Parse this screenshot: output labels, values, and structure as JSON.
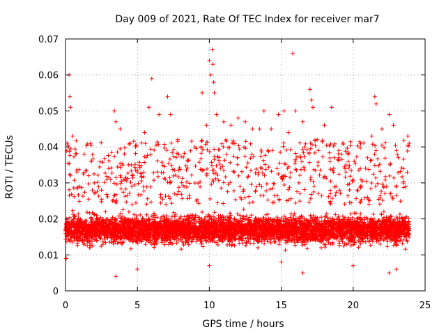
{
  "chart_data": {
    "type": "scatter",
    "title": "Day 009 of 2021, Rate Of TEC Index for receiver mar7",
    "xlabel": "GPS time / hours",
    "ylabel": "ROTI / TECUs",
    "xlim": [
      0,
      25
    ],
    "ylim": [
      0,
      0.07
    ],
    "x_ticks": [
      0,
      5,
      10,
      15,
      20,
      25
    ],
    "x_tick_labels": [
      "0",
      "5",
      "10",
      "15",
      "20",
      "25"
    ],
    "y_ticks": [
      0,
      0.01,
      0.02,
      0.03,
      0.04,
      0.05,
      0.06,
      0.07
    ],
    "y_tick_labels": [
      "0",
      "0.01",
      "0.02",
      "0.03",
      "0.04",
      "0.05",
      "0.06",
      "0.07"
    ],
    "grid": true,
    "marker": "+",
    "marker_color": "#ff0000",
    "series": [
      {
        "name": "ROTI",
        "description_note": "dense scatter; core band ~0.010-0.025 TECU/min across 0-24 h",
        "points": [
          [
            0.1,
            0.018
          ],
          [
            0.2,
            0.04
          ],
          [
            0.25,
            0.06
          ],
          [
            0.3,
            0.054
          ],
          [
            0.35,
            0.051
          ],
          [
            0.5,
            0.043
          ],
          [
            0.8,
            0.033
          ],
          [
            1.0,
            0.029
          ],
          [
            1.3,
            0.038
          ],
          [
            1.6,
            0.032
          ],
          [
            2.0,
            0.03
          ],
          [
            2.5,
            0.028
          ],
          [
            3.0,
            0.034
          ],
          [
            3.4,
            0.05
          ],
          [
            3.5,
            0.047
          ],
          [
            3.8,
            0.045
          ],
          [
            4.5,
            0.041
          ],
          [
            5.0,
            0.033
          ],
          [
            5.5,
            0.044
          ],
          [
            5.8,
            0.051
          ],
          [
            6.0,
            0.059
          ],
          [
            6.5,
            0.049
          ],
          [
            7.1,
            0.054
          ],
          [
            7.3,
            0.049
          ],
          [
            7.8,
            0.042
          ],
          [
            8.5,
            0.036
          ],
          [
            9.0,
            0.04
          ],
          [
            9.5,
            0.055
          ],
          [
            9.8,
            0.046
          ],
          [
            10.0,
            0.064
          ],
          [
            10.1,
            0.06
          ],
          [
            10.2,
            0.067
          ],
          [
            10.25,
            0.063
          ],
          [
            10.3,
            0.058
          ],
          [
            10.35,
            0.055
          ],
          [
            10.5,
            0.049
          ],
          [
            11.0,
            0.047
          ],
          [
            11.5,
            0.046
          ],
          [
            12.0,
            0.048
          ],
          [
            12.5,
            0.047
          ],
          [
            13.0,
            0.045
          ],
          [
            13.5,
            0.045
          ],
          [
            13.8,
            0.05
          ],
          [
            14.3,
            0.045
          ],
          [
            14.8,
            0.049
          ],
          [
            15.2,
            0.05
          ],
          [
            15.5,
            0.044
          ],
          [
            15.8,
            0.066
          ],
          [
            16.0,
            0.05
          ],
          [
            16.5,
            0.047
          ],
          [
            17.0,
            0.056
          ],
          [
            17.1,
            0.053
          ],
          [
            17.2,
            0.051
          ],
          [
            17.5,
            0.042
          ],
          [
            18.0,
            0.046
          ],
          [
            18.5,
            0.051
          ],
          [
            19.0,
            0.037
          ],
          [
            19.5,
            0.035
          ],
          [
            20.0,
            0.031
          ],
          [
            20.5,
            0.034
          ],
          [
            21.0,
            0.037
          ],
          [
            21.3,
            0.043
          ],
          [
            21.5,
            0.054
          ],
          [
            21.6,
            0.052
          ],
          [
            22.0,
            0.045
          ],
          [
            22.5,
            0.049
          ],
          [
            22.8,
            0.046
          ],
          [
            23.0,
            0.039
          ],
          [
            23.5,
            0.034
          ],
          [
            23.8,
            0.043
          ],
          [
            23.9,
            0.041
          ],
          [
            0.05,
            0.009
          ],
          [
            5.0,
            0.006
          ],
          [
            10.0,
            0.007
          ],
          [
            15.0,
            0.008
          ],
          [
            20.0,
            0.007
          ],
          [
            23.0,
            0.006
          ],
          [
            3.5,
            0.004
          ],
          [
            16.5,
            0.005
          ],
          [
            22.5,
            0.005
          ]
        ]
      }
    ]
  }
}
